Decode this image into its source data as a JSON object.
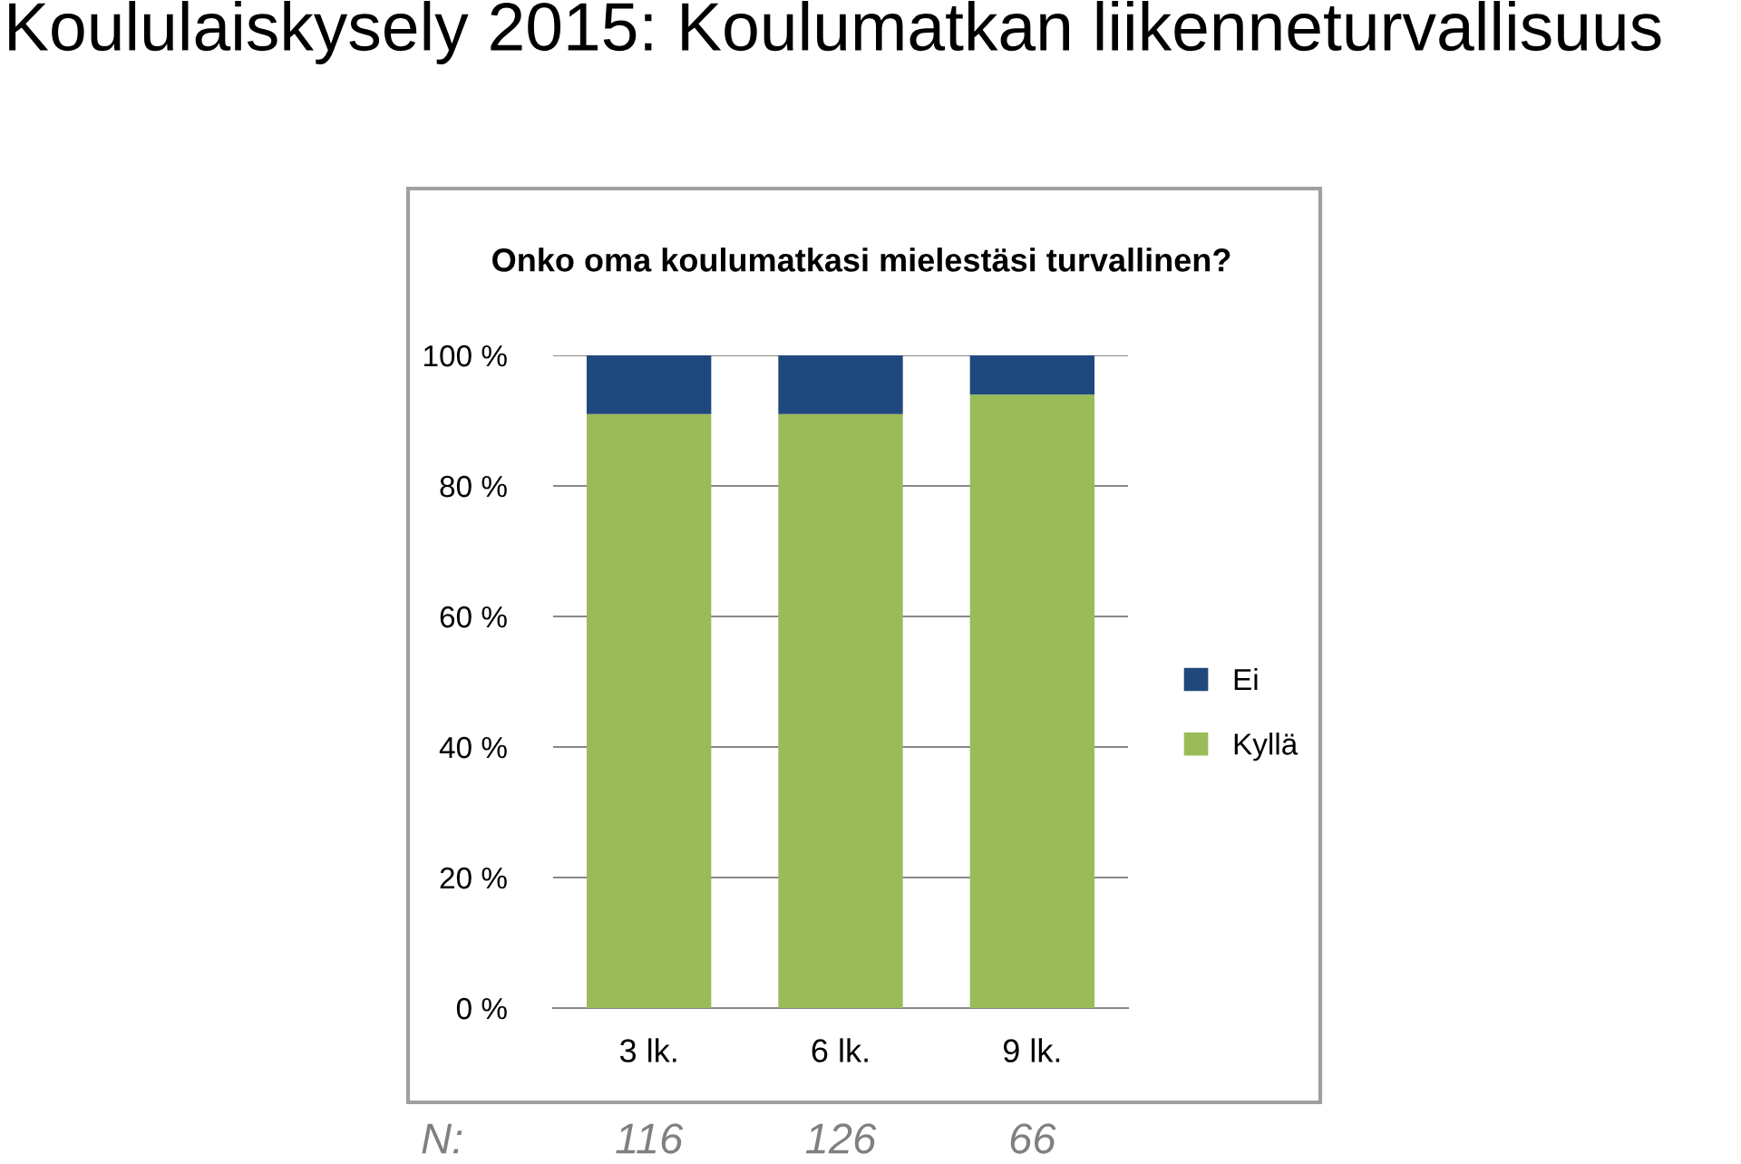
{
  "chart_data": {
    "type": "bar",
    "stacked": true,
    "title": "Koululaiskysely 2015: Koulumatkan liikenneturvallisuus",
    "subtitle": "Onko oma koulumatkasi mielestäsi turvallinen?",
    "categories": [
      "3 lk.",
      "6 lk.",
      "9 lk."
    ],
    "series": [
      {
        "name": "Kyllä",
        "color": "#9bbb59",
        "values": [
          91,
          91,
          94
        ]
      },
      {
        "name": "Ei",
        "color": "#1f497d",
        "values": [
          9,
          9,
          6
        ]
      }
    ],
    "ylim": [
      0,
      100
    ],
    "yticks": [
      {
        "value": 0,
        "label": "0 %"
      },
      {
        "value": 20,
        "label": "20 %"
      },
      {
        "value": 40,
        "label": "40 %"
      },
      {
        "value": 60,
        "label": "60 %"
      },
      {
        "value": 80,
        "label": "80 %"
      },
      {
        "value": 100,
        "label": "100 %"
      }
    ],
    "grid": "y",
    "legend": "right",
    "annotations": [
      "N:",
      "116",
      "126",
      "66"
    ]
  }
}
